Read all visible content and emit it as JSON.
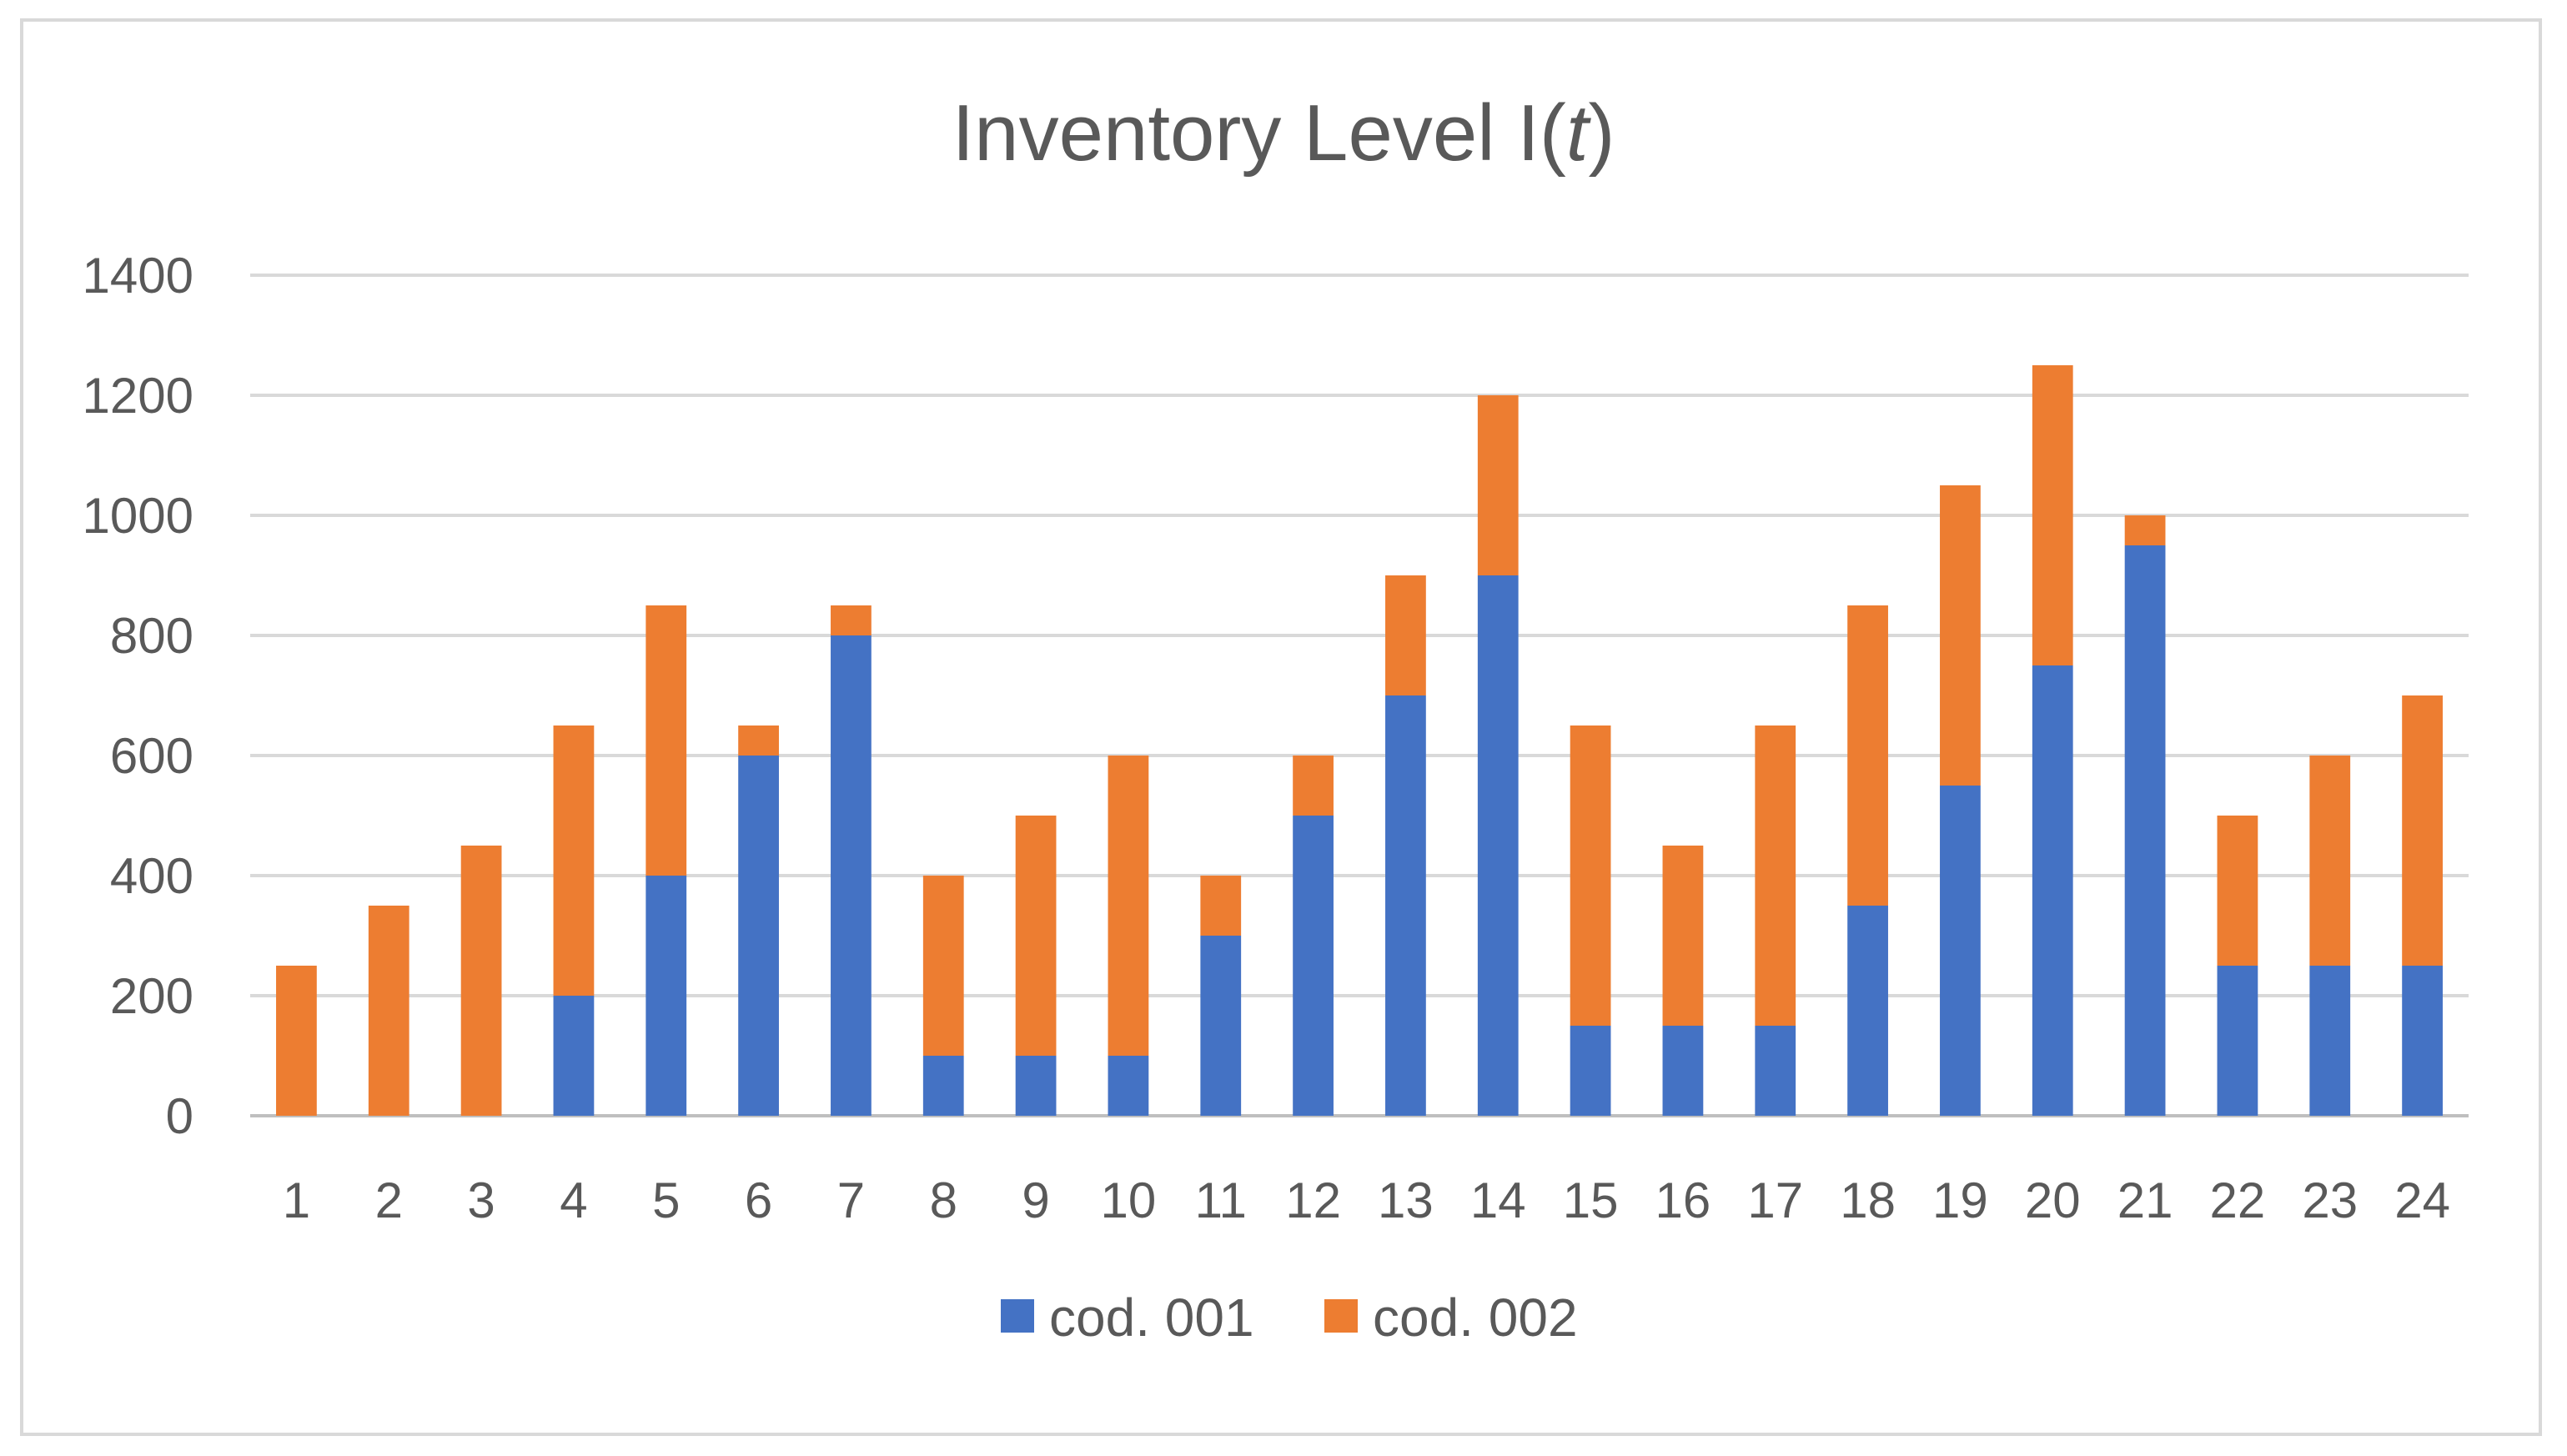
{
  "chart_data": {
    "type": "bar",
    "stacked": true,
    "title": "Inventory Level I(",
    "title_var": "t",
    "title_close": ")",
    "xlabel": "",
    "ylabel": "",
    "categories": [
      "1",
      "2",
      "3",
      "4",
      "5",
      "6",
      "7",
      "8",
      "9",
      "10",
      "11",
      "12",
      "13",
      "14",
      "15",
      "16",
      "17",
      "18",
      "19",
      "20",
      "21",
      "22",
      "23",
      "24"
    ],
    "series": [
      {
        "name": "cod. 001",
        "color": "#4472c4",
        "values": [
          0,
          0,
          0,
          200,
          400,
          600,
          800,
          100,
          100,
          100,
          300,
          500,
          700,
          900,
          150,
          150,
          150,
          350,
          550,
          750,
          950,
          250,
          250,
          250
        ]
      },
      {
        "name": "cod. 002",
        "color": "#ed7d31",
        "values": [
          250,
          350,
          450,
          450,
          450,
          50,
          50,
          300,
          400,
          500,
          100,
          100,
          200,
          300,
          500,
          300,
          500,
          500,
          500,
          500,
          50,
          250,
          350,
          450
        ]
      }
    ],
    "ylim": [
      0,
      1400
    ],
    "yticks": [
      "0",
      "200",
      "400",
      "600",
      "800",
      "1000",
      "1200",
      "1400"
    ],
    "grid": true,
    "legend": "bottom"
  }
}
